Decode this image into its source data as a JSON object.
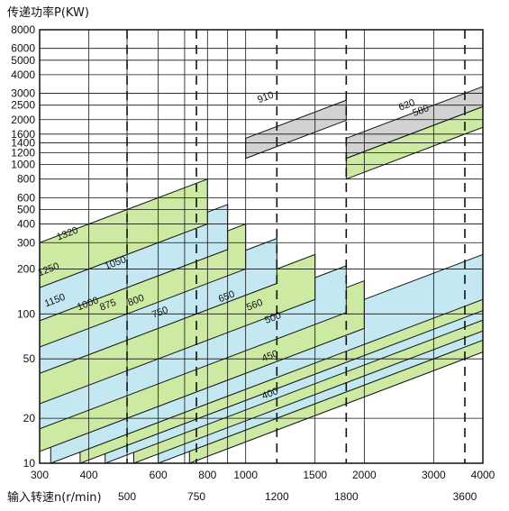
{
  "chart_data": {
    "type": "area",
    "ylabel": "传递功率P(KW)",
    "xlabel": "输入转速n(r/min)",
    "x_scale": "log",
    "y_scale": "log",
    "xlim": [
      300,
      4000
    ],
    "ylim": [
      10,
      8000
    ],
    "x_ticks": [
      300,
      400,
      500,
      600,
      700,
      800,
      900,
      1000,
      1500,
      2000,
      3000,
      4000
    ],
    "x_tick_labels_top": [
      "300",
      "400",
      "600",
      "800",
      "1000",
      "1500",
      "2000",
      "3000",
      "4000"
    ],
    "x_tick_values_top": [
      300,
      400,
      600,
      800,
      1000,
      1500,
      2000,
      3000,
      4000
    ],
    "x_tick_labels_bottom": [
      "500",
      "750",
      "1200",
      "1800",
      "3600"
    ],
    "x_tick_values_bottom": [
      500,
      750,
      1200,
      1800,
      3600
    ],
    "dashed_speed_lines": [
      500,
      750,
      1200,
      1800,
      3600
    ],
    "y_ticks": [
      10,
      20,
      50,
      100,
      200,
      300,
      400,
      500,
      600,
      800,
      1000,
      1200,
      1400,
      1600,
      2000,
      2500,
      3000,
      4000,
      5000,
      6000,
      8000
    ],
    "y_tick_labels": [
      "10",
      "20",
      "50",
      "100",
      "200",
      "300",
      "400",
      "500",
      "600",
      "800",
      "1000",
      "1200",
      "1400",
      "1600",
      "2000",
      "2500",
      "3000",
      "4000",
      "5000",
      "6000",
      "8000"
    ],
    "grid": true,
    "colors": {
      "blue": "#c3e8f2",
      "green": "#cdeaa2",
      "gray": "#d2d2d2",
      "line": "#111111"
    },
    "bands": [
      {
        "label": "400",
        "color": "green",
        "n_start": 720,
        "n_end": 4000,
        "p_low_at_start": 10,
        "p_high_at_start": 20
      },
      {
        "label": "450",
        "color": "blue",
        "n_start": 600,
        "n_end": 4000,
        "p_low_at_start": 10,
        "p_high_at_start": 20
      },
      {
        "label": "500",
        "color": "green",
        "n_start": 520,
        "n_end": 4000,
        "p_low_at_start": 10,
        "p_high_at_start": 20
      },
      {
        "label": "560",
        "color": "blue",
        "n_start": 440,
        "n_end": 4000,
        "p_low_at_start": 10,
        "p_high_at_start": 20
      },
      {
        "label": "650",
        "color": "green",
        "n_start": 380,
        "n_end": 4000,
        "p_low_at_start": 10,
        "p_high_at_start": 20
      },
      {
        "label": "750",
        "color": "blue",
        "n_start": 320,
        "n_end": 4000,
        "p_low_at_start": 10,
        "p_high_at_start": 20
      },
      {
        "label": "800",
        "color": "green",
        "n_start": 300,
        "n_end": 2000,
        "p_low_at_start": 12,
        "p_high_at_start": 25
      },
      {
        "label": "875",
        "color": "blue",
        "n_start": 300,
        "n_end": 1800,
        "p_low_at_start": 17,
        "p_high_at_start": 35
      },
      {
        "label": "1000",
        "color": "green",
        "n_start": 300,
        "n_end": 1500,
        "p_low_at_start": 25,
        "p_high_at_start": 50
      },
      {
        "label": "1050",
        "color": "blue",
        "n_start": 300,
        "n_end": 1200,
        "p_low_at_start": 40,
        "p_high_at_start": 80
      },
      {
        "label": "1150",
        "color": "green",
        "n_start": 300,
        "n_end": 1000,
        "p_low_at_start": 60,
        "p_high_at_start": 120
      },
      {
        "label": "1250",
        "color": "blue",
        "n_start": 300,
        "n_end": 900,
        "p_low_at_start": 90,
        "p_high_at_start": 180
      },
      {
        "label": "1320",
        "color": "green",
        "n_start": 300,
        "n_end": 800,
        "p_low_at_start": 150,
        "p_high_at_start": 300
      },
      {
        "label": "910",
        "color": "gray",
        "n_start": 1000,
        "n_end": 1800,
        "p_low_at_start": 1100,
        "p_high_at_start": 1500
      },
      {
        "label": "620",
        "color": "gray",
        "n_start": 1800,
        "n_end": 4000,
        "p_low_at_start": 1100,
        "p_high_at_start": 1500
      },
      {
        "label": "580",
        "color": "green",
        "n_start": 1800,
        "n_end": 4000,
        "p_low_at_start": 800,
        "p_high_at_start": 1100
      }
    ],
    "band_labels": [
      {
        "text": "1320",
        "n": 355,
        "p": 330
      },
      {
        "text": "1250",
        "n": 318,
        "p": 190
      },
      {
        "text": "1150",
        "n": 330,
        "p": 118
      },
      {
        "text": "1050",
        "n": 470,
        "p": 210
      },
      {
        "text": "1000",
        "n": 400,
        "p": 112
      },
      {
        "text": "875",
        "n": 450,
        "p": 110
      },
      {
        "text": "800",
        "n": 530,
        "p": 118
      },
      {
        "text": "750",
        "n": 610,
        "p": 98
      },
      {
        "text": "650",
        "n": 900,
        "p": 125
      },
      {
        "text": "560",
        "n": 1060,
        "p": 110
      },
      {
        "text": "500",
        "n": 1180,
        "p": 90
      },
      {
        "text": "450",
        "n": 1160,
        "p": 50
      },
      {
        "text": "400",
        "n": 1160,
        "p": 28
      },
      {
        "text": "910",
        "n": 1130,
        "p": 2700
      },
      {
        "text": "620",
        "n": 2580,
        "p": 2400
      },
      {
        "text": "580",
        "n": 2800,
        "p": 2200
      }
    ]
  }
}
